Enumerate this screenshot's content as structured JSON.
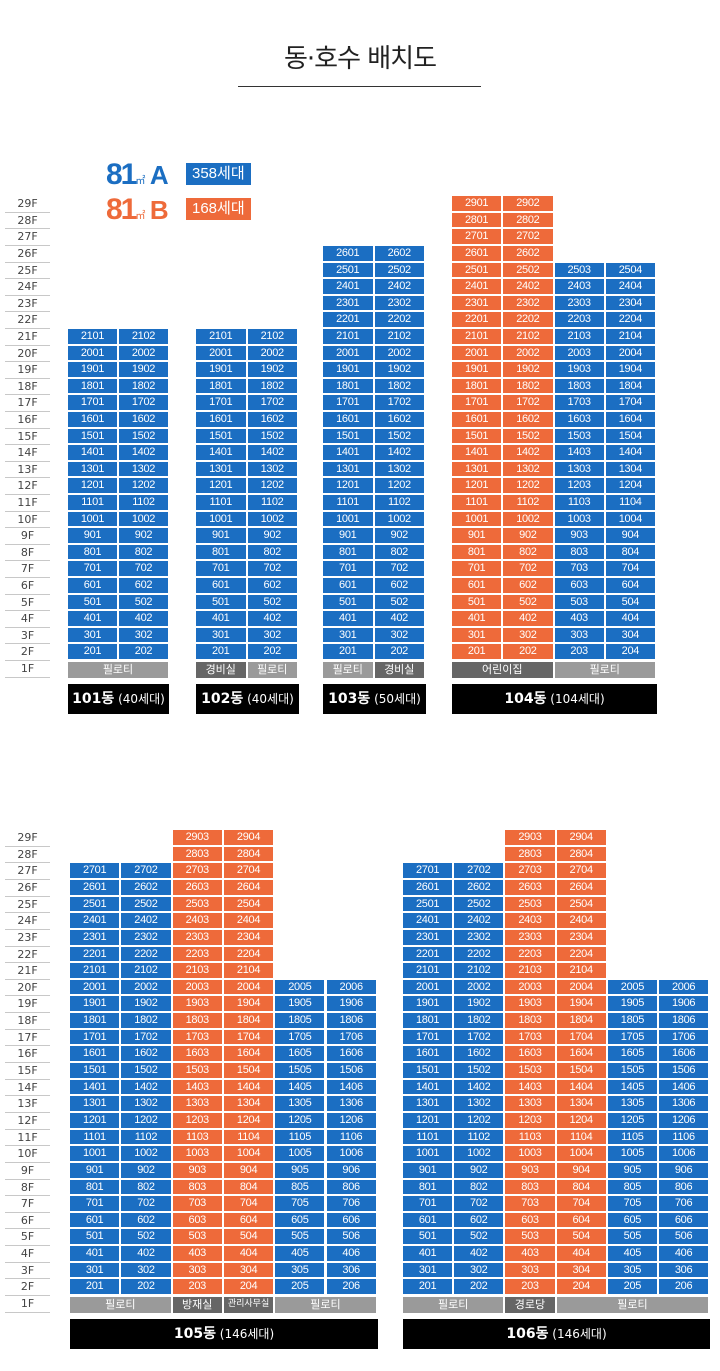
{
  "title": "동·호수 배치도",
  "colors": {
    "typeA": "#1b6ec2",
    "typeB": "#ee6a3a",
    "pilotis": "#9a9a9a",
    "facility": "#666666",
    "label_bg": "#000000"
  },
  "legend": [
    {
      "area": "81",
      "unit": "㎡",
      "type": "A",
      "households": "358세대",
      "color": "#1b6ec2"
    },
    {
      "area": "81",
      "unit": "㎡",
      "type": "B",
      "households": "168세대",
      "color": "#ee6a3a"
    }
  ],
  "floor_labels": [
    "29F",
    "28F",
    "27F",
    "26F",
    "25F",
    "24F",
    "23F",
    "22F",
    "21F",
    "20F",
    "19F",
    "18F",
    "17F",
    "16F",
    "15F",
    "14F",
    "13F",
    "12F",
    "11F",
    "10F",
    "9F",
    "8F",
    "7F",
    "6F",
    "5F",
    "4F",
    "3F",
    "2F",
    "1F"
  ],
  "buildings": [
    {
      "name": "101동",
      "count": "(40세대)",
      "lines": [
        {
          "line": "01",
          "type": "A",
          "top": 21
        },
        {
          "line": "02",
          "type": "A",
          "top": 21
        }
      ],
      "ground": [
        {
          "label": "필로티",
          "span": 2,
          "kind": "pilotis"
        }
      ]
    },
    {
      "name": "102동",
      "count": "(40세대)",
      "lines": [
        {
          "line": "01",
          "type": "A",
          "top": 21
        },
        {
          "line": "02",
          "type": "A",
          "top": 21
        }
      ],
      "ground": [
        {
          "label": "경비실",
          "span": 1,
          "kind": "facility"
        },
        {
          "label": "필로티",
          "span": 1,
          "kind": "pilotis"
        }
      ]
    },
    {
      "name": "103동",
      "count": "(50세대)",
      "lines": [
        {
          "line": "01",
          "type": "A",
          "top": 26
        },
        {
          "line": "02",
          "type": "A",
          "top": 26
        }
      ],
      "ground": [
        {
          "label": "필로티",
          "span": 1,
          "kind": "pilotis"
        },
        {
          "label": "경비실",
          "span": 1,
          "kind": "facility"
        }
      ]
    },
    {
      "name": "104동",
      "count": "(104세대)",
      "lines": [
        {
          "line": "01",
          "type": "B",
          "top": 29
        },
        {
          "line": "02",
          "type": "B",
          "top": 29
        },
        {
          "line": "03",
          "type": "A",
          "top": 25
        },
        {
          "line": "04",
          "type": "A",
          "top": 25
        }
      ],
      "ground": [
        {
          "label": "어린이집",
          "span": 2,
          "kind": "facility"
        },
        {
          "label": "필로티",
          "span": 2,
          "kind": "pilotis"
        }
      ]
    },
    {
      "name": "105동",
      "count": "(146세대)",
      "lines": [
        {
          "line": "01",
          "type": "A",
          "top": 27
        },
        {
          "line": "02",
          "type": "A",
          "top": 27
        },
        {
          "line": "03",
          "type": "B",
          "top": 29
        },
        {
          "line": "04",
          "type": "B",
          "top": 29
        },
        {
          "line": "05",
          "type": "A",
          "top": 20
        },
        {
          "line": "06",
          "type": "A",
          "top": 20
        }
      ],
      "ground": [
        {
          "label": "필로티",
          "span": 2,
          "kind": "pilotis"
        },
        {
          "label": "방재실",
          "span": 1,
          "kind": "facility"
        },
        {
          "label": "관리사무실",
          "span": 1,
          "kind": "facility"
        },
        {
          "label": "필로티",
          "span": 2,
          "kind": "pilotis"
        }
      ]
    },
    {
      "name": "106동",
      "count": "(146세대)",
      "lines": [
        {
          "line": "01",
          "type": "A",
          "top": 27
        },
        {
          "line": "02",
          "type": "A",
          "top": 27
        },
        {
          "line": "03",
          "type": "B",
          "top": 29
        },
        {
          "line": "04",
          "type": "B",
          "top": 29
        },
        {
          "line": "05",
          "type": "A",
          "top": 20
        },
        {
          "line": "06",
          "type": "A",
          "top": 20
        }
      ],
      "ground": [
        {
          "label": "필로티",
          "span": 2,
          "kind": "pilotis"
        },
        {
          "label": "경로당",
          "span": 1,
          "kind": "facility"
        },
        {
          "label": "필로티",
          "span": 3,
          "kind": "pilotis"
        }
      ]
    }
  ]
}
